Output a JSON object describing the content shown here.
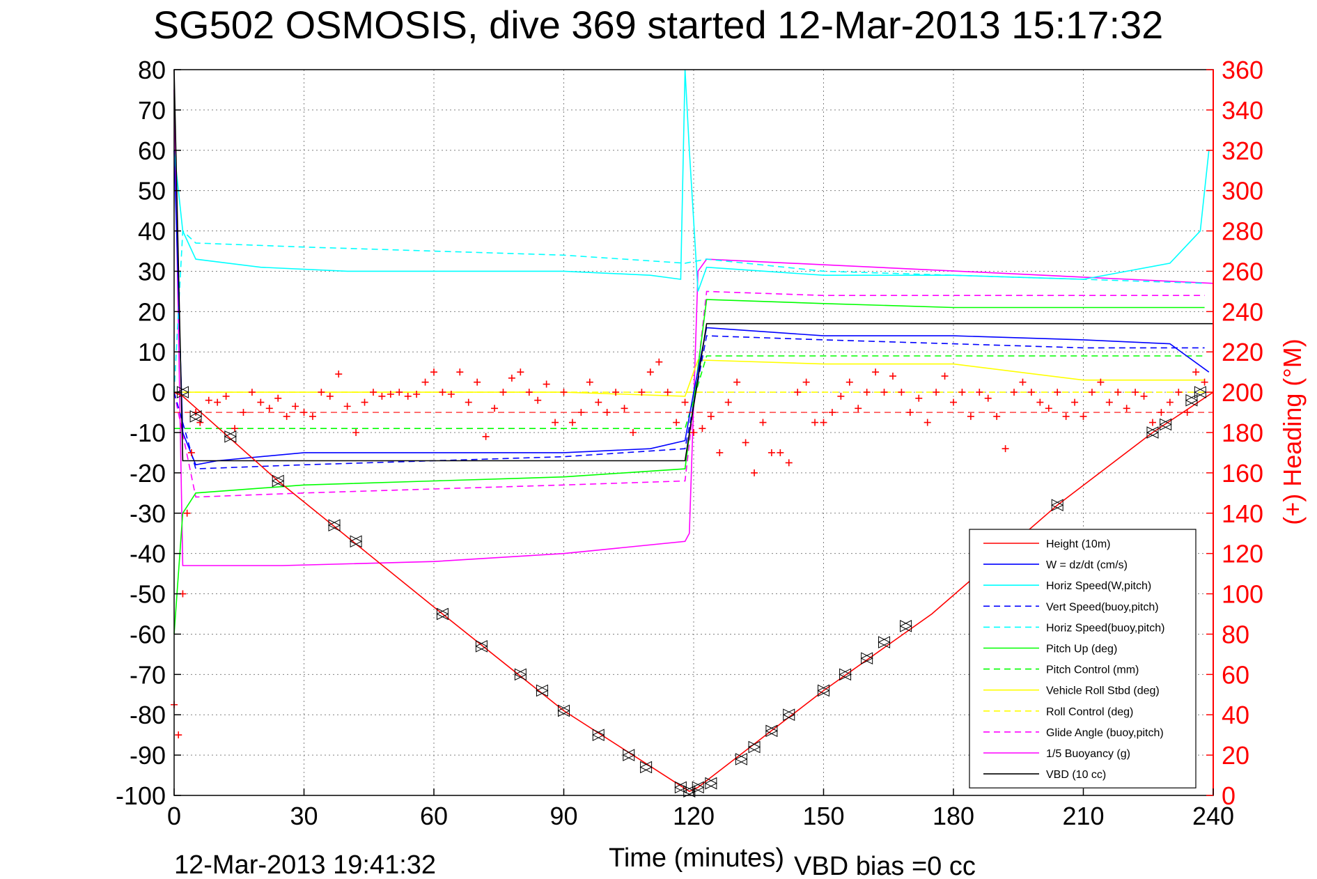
{
  "chart_data": {
    "type": "line",
    "title": "SG502 OSMOSIS, dive 369 started 12-Mar-2013 15:17:32",
    "xlabel": "Time (minutes)",
    "ylabel_right": "(+) Heading (°M)",
    "footer_left": "12-Mar-2013 19:41:32",
    "footer_right": "VBD bias =0 cc",
    "xlim": [
      0,
      240
    ],
    "ylim": [
      -100,
      80
    ],
    "ylim_right": [
      0,
      360
    ],
    "grid": true,
    "legend_position": "lower-right",
    "xticks": [
      "0",
      "30",
      "60",
      "90",
      "120",
      "150",
      "180",
      "210",
      "240"
    ],
    "yticks_left": [
      "80",
      "70",
      "60",
      "50",
      "40",
      "30",
      "20",
      "10",
      "0",
      "-10",
      "-20",
      "-30",
      "-40",
      "-50",
      "-60",
      "-70",
      "-80",
      "-90",
      "-100"
    ],
    "yticks_right": [
      "360",
      "340",
      "320",
      "300",
      "280",
      "260",
      "240",
      "220",
      "200",
      "180",
      "160",
      "140",
      "120",
      "100",
      "80",
      "60",
      "40",
      "20",
      "0"
    ],
    "colors": {
      "height": "#ff0000",
      "w": "#0000ff",
      "horiz": "#00ffff",
      "pitch": "#00ff00",
      "roll": "#ffff00",
      "glide": "#ff00ff",
      "buoy": "#ff00ff",
      "vbd": "#000000",
      "heading": "#ff0000"
    },
    "series": [
      {
        "name": "Height (10m)",
        "style": "solid",
        "color": "#ff0000",
        "x": [
          0,
          2,
          24,
          62,
          90,
          119,
          121,
          150,
          175,
          204,
          226,
          240
        ],
        "y": [
          0,
          -1,
          -22,
          -55,
          -79,
          -99,
          -98,
          -74,
          -55,
          -28,
          -10,
          0
        ]
      },
      {
        "name": "W = dz/dt (cm/s)",
        "style": "solid",
        "color": "#0000ff",
        "x": [
          0,
          2,
          5,
          10,
          30,
          60,
          90,
          110,
          118,
          120,
          123,
          150,
          180,
          210,
          230,
          239
        ],
        "y": [
          60,
          -10,
          -18,
          -17,
          -15,
          -15,
          -15,
          -14,
          -12,
          0,
          16,
          14,
          14,
          13,
          12,
          5
        ]
      },
      {
        "name": "Horiz Speed(W,pitch)",
        "style": "solid",
        "color": "#00ffff",
        "x": [
          0,
          2,
          5,
          20,
          40,
          60,
          90,
          110,
          117,
          118,
          119,
          121,
          123,
          150,
          180,
          210,
          230,
          237,
          239
        ],
        "y": [
          60,
          40,
          33,
          31,
          30,
          30,
          30,
          29,
          28,
          80,
          60,
          25,
          31,
          29,
          29,
          28,
          32,
          40,
          60
        ]
      },
      {
        "name": "Vert Speed(buoy,pitch)",
        "style": "dashed",
        "color": "#0000ff",
        "x": [
          0,
          5,
          30,
          60,
          90,
          118,
          123,
          150,
          180,
          210,
          238
        ],
        "y": [
          0,
          -19,
          -18,
          -17,
          -16,
          -14,
          14,
          13,
          12,
          11,
          11
        ]
      },
      {
        "name": "Horiz Speed(buoy,pitch)",
        "style": "dashed",
        "color": "#00ffff",
        "x": [
          0,
          2,
          5,
          30,
          60,
          90,
          118,
          123,
          150,
          180,
          210,
          238
        ],
        "y": [
          0,
          40,
          37,
          36,
          35,
          34,
          32,
          33,
          30,
          29,
          28,
          27
        ]
      },
      {
        "name": "Pitch Up (deg)",
        "style": "solid",
        "color": "#00ff00",
        "x": [
          0,
          2,
          5,
          30,
          60,
          90,
          118,
          123,
          150,
          180,
          210,
          238
        ],
        "y": [
          -60,
          -30,
          -25,
          -23,
          -22,
          -21,
          -19,
          23,
          22,
          21,
          21,
          21
        ]
      },
      {
        "name": "Pitch Control (mm)",
        "style": "dashed",
        "color": "#00ff00",
        "x": [
          0,
          5,
          118,
          123,
          238
        ],
        "y": [
          -9,
          -9,
          -9,
          9,
          9
        ]
      },
      {
        "name": "Vehicle Roll Stbd (deg)",
        "style": "solid",
        "color": "#ffff00",
        "x": [
          0,
          5,
          30,
          60,
          90,
          118,
          121,
          150,
          180,
          210,
          238
        ],
        "y": [
          0,
          0,
          0,
          0,
          0,
          -1,
          8,
          7,
          7,
          3,
          3
        ]
      },
      {
        "name": "Roll Control (deg)",
        "style": "dashed",
        "color": "#ffff00",
        "x": [
          0,
          240
        ],
        "y": [
          0,
          0
        ]
      },
      {
        "name": "Glide Angle (buoy,pitch)",
        "style": "dashed",
        "color": "#ff00ff",
        "x": [
          0,
          5,
          30,
          60,
          90,
          118,
          123,
          150,
          180,
          210,
          238
        ],
        "y": [
          0,
          -26,
          -25,
          -24,
          -23,
          -22,
          25,
          24,
          24,
          24,
          24
        ]
      },
      {
        "name": "1/5 Buoyancy (g)",
        "style": "solid",
        "color": "#ff00ff",
        "x": [
          0,
          2,
          25,
          60,
          90,
          118,
          119,
          121,
          123,
          240
        ],
        "y": [
          75,
          -43,
          -43,
          -42,
          -40,
          -37,
          -35,
          30,
          33,
          27
        ]
      },
      {
        "name": "VBD (10 cc)",
        "style": "solid",
        "color": "#000000",
        "x": [
          0,
          2,
          5,
          118,
          123,
          240
        ],
        "y": [
          80,
          -17,
          -17,
          -17,
          17,
          17
        ]
      }
    ],
    "heading_markers": {
      "name": "(+) Heading",
      "color": "#ff0000",
      "axis": "right",
      "x": [
        0,
        1,
        2,
        3,
        4,
        5,
        6,
        8,
        10,
        12,
        14,
        16,
        18,
        20,
        22,
        24,
        26,
        28,
        30,
        32,
        34,
        36,
        38,
        40,
        42,
        44,
        46,
        48,
        50,
        52,
        54,
        56,
        58,
        60,
        62,
        64,
        66,
        68,
        70,
        72,
        74,
        76,
        78,
        80,
        82,
        84,
        86,
        88,
        90,
        92,
        94,
        96,
        98,
        100,
        102,
        104,
        106,
        108,
        110,
        112,
        114,
        116,
        118,
        120,
        122,
        124,
        126,
        128,
        130,
        132,
        134,
        136,
        138,
        140,
        142,
        144,
        146,
        148,
        150,
        152,
        154,
        156,
        158,
        160,
        162,
        164,
        166,
        168,
        170,
        172,
        174,
        176,
        178,
        180,
        182,
        184,
        186,
        188,
        190,
        192,
        194,
        196,
        198,
        200,
        202,
        204,
        206,
        208,
        210,
        212,
        214,
        216,
        218,
        220,
        222,
        224,
        226,
        228,
        230,
        232,
        234,
        236,
        238
      ],
      "y": [
        45,
        30,
        100,
        140,
        170,
        190,
        185,
        196,
        195,
        198,
        182,
        190,
        200,
        195,
        192,
        197,
        188,
        193,
        190,
        188,
        200,
        198,
        209,
        193,
        180,
        195,
        200,
        198,
        199,
        200,
        198,
        199,
        205,
        210,
        200,
        199,
        210,
        195,
        205,
        178,
        192,
        200,
        207,
        210,
        200,
        196,
        204,
        185,
        200,
        185,
        190,
        205,
        195,
        190,
        200,
        192,
        180,
        200,
        210,
        215,
        200,
        185,
        195,
        180,
        182,
        188,
        170,
        195,
        205,
        175,
        160,
        185,
        170,
        170,
        165,
        200,
        205,
        185,
        185,
        190,
        198,
        205,
        192,
        200,
        210,
        200,
        208,
        200,
        190,
        197,
        185,
        200,
        208,
        195,
        200,
        188,
        200,
        197,
        188,
        172,
        200,
        205,
        200,
        195,
        192,
        200,
        188,
        195,
        188,
        200,
        205,
        195,
        200,
        192,
        200,
        198,
        185,
        190,
        195,
        200,
        190,
        210,
        205
      ]
    },
    "depth_triangles": {
      "x": [
        2,
        5,
        13,
        24,
        37,
        42,
        62,
        71,
        80,
        85,
        90,
        98,
        105,
        109,
        117,
        119,
        121,
        124,
        131,
        134,
        138,
        142,
        150,
        155,
        160,
        164,
        169,
        204,
        226,
        229,
        235,
        237
      ],
      "y": [
        0,
        -6,
        -11,
        -22,
        -33,
        -37,
        -55,
        -63,
        -70,
        -74,
        -79,
        -85,
        -90,
        -93,
        -98,
        -99,
        -98,
        -97,
        -91,
        -88,
        -84,
        -80,
        -74,
        -70,
        -66,
        -62,
        -58,
        -28,
        -10,
        -8,
        -2,
        0
      ]
    },
    "heading_reference_right": 190
  }
}
